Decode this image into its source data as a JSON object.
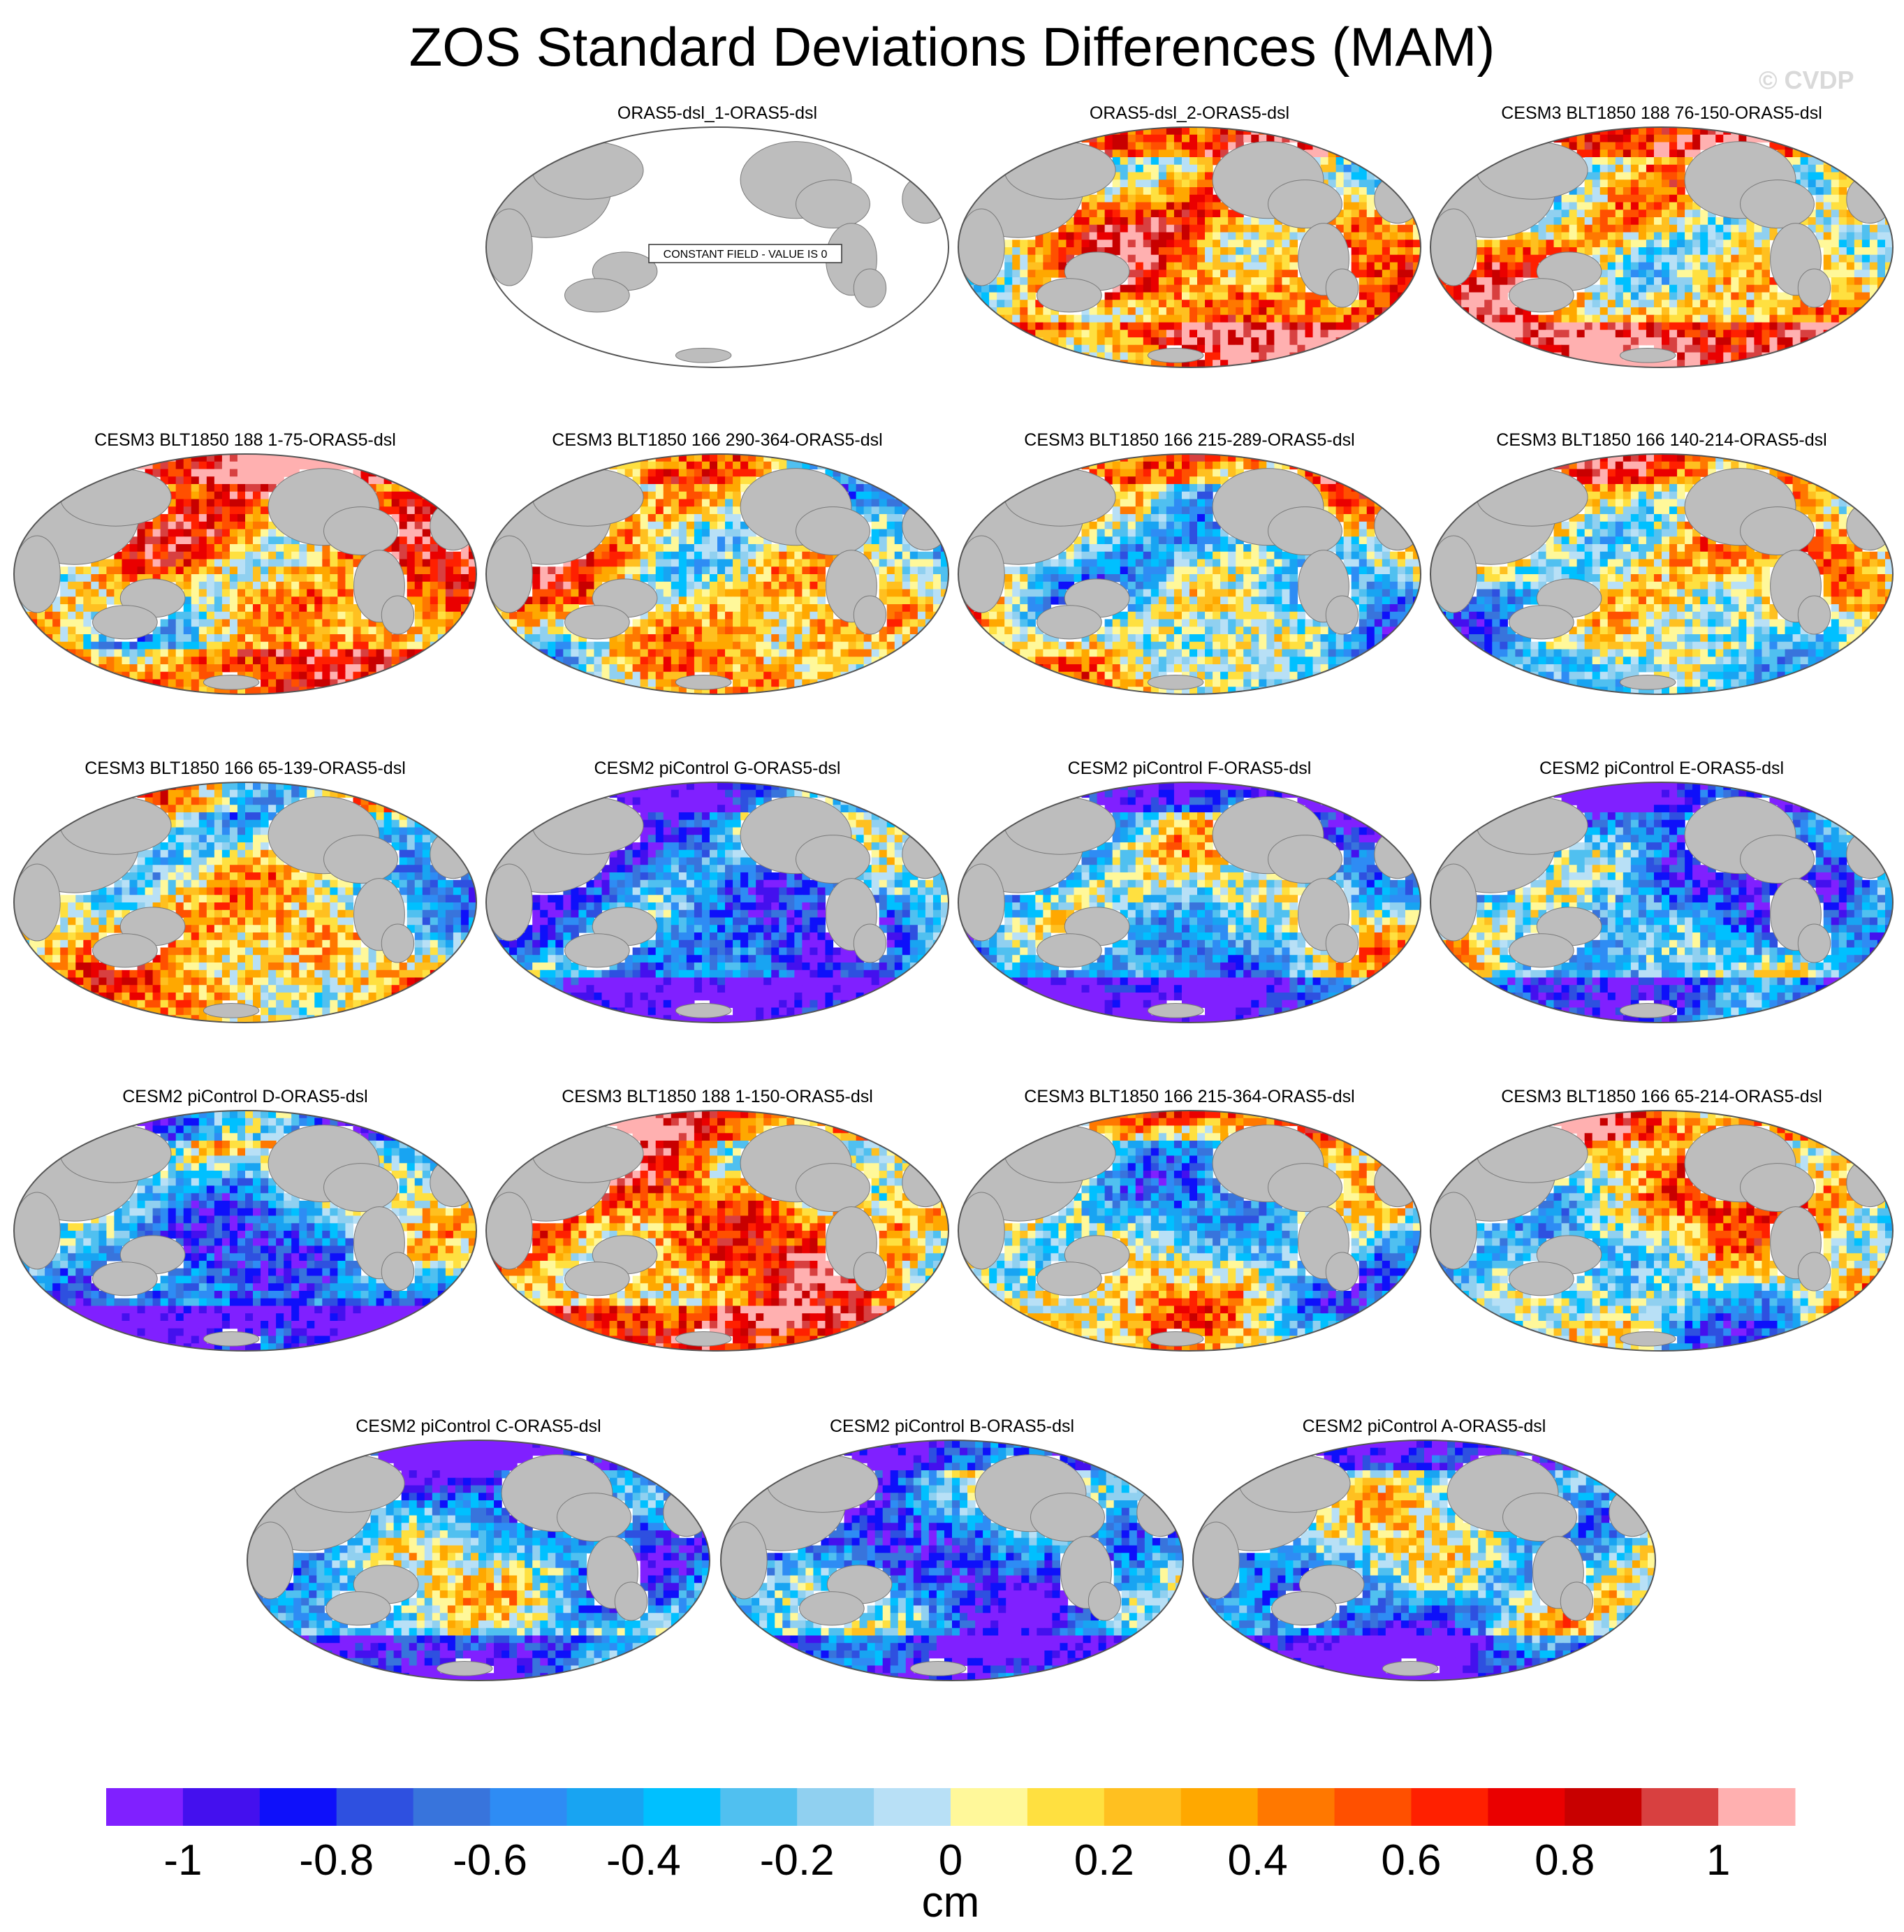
{
  "title": "ZOS Standard Deviations Differences (MAM)",
  "watermark": "© CVDP",
  "colors": {
    "land": "#bdbdbd",
    "ocean_constant": "#ffffff",
    "levels": [
      "#8020ff",
      "#4410ee",
      "#0e10fa",
      "#2e50e0",
      "#3874dc",
      "#2e8cf4",
      "#18a4f2",
      "#00c0ff",
      "#50c0f0",
      "#90d0f0",
      "#b8e0f6",
      "#fff89a",
      "#ffe040",
      "#ffc020",
      "#ffa800",
      "#ff7800",
      "#ff5000",
      "#ff2000",
      "#ea0000",
      "#c80000",
      "#d84040",
      "#ffb0b0"
    ]
  },
  "chart_data": {
    "type": "heatmap",
    "projection": "Robinson (Pacific-centered)",
    "colorbar": {
      "label": "cm",
      "min": -1.1,
      "max": 1.1,
      "boundaries": [
        -1.0,
        -0.9,
        -0.8,
        -0.7,
        -0.6,
        -0.5,
        -0.4,
        -0.3,
        -0.2,
        -0.1,
        0,
        0.1,
        0.2,
        0.3,
        0.4,
        0.5,
        0.6,
        0.7,
        0.8,
        0.9,
        1.0
      ],
      "tick_values": [
        -1,
        -0.8,
        -0.6,
        -0.4,
        -0.2,
        0,
        0.2,
        0.4,
        0.6,
        0.8,
        1
      ],
      "tick_labels": [
        "-1",
        "-0.8",
        "-0.6",
        "-0.4",
        "-0.2",
        "0",
        "0.2",
        "0.4",
        "0.6",
        "0.8",
        "1"
      ]
    },
    "panels": [
      {
        "title": "ORAS5-dsl_1-ORAS5-dsl",
        "constant": true,
        "note": "CONSTANT FIELD - VALUE IS 0"
      },
      {
        "title": "ORAS5-dsl_2-ORAS5-dsl",
        "dominant": "orange/yellow",
        "bias": 0.25
      },
      {
        "title": "CESM3 BLT1850 188 76-150-ORAS5-dsl",
        "dominant": "pink/red",
        "bias": 0.3
      },
      {
        "title": "CESM3 BLT1850 188 1-75-ORAS5-dsl",
        "dominant": "pink/red",
        "bias": 0.3
      },
      {
        "title": "CESM3 BLT1850 166 290-364-ORAS5-dsl",
        "dominant": "mixed",
        "bias": 0.0
      },
      {
        "title": "CESM3 BLT1850 166 215-289-ORAS5-dsl",
        "dominant": "mixed",
        "bias": 0.0
      },
      {
        "title": "CESM3 BLT1850 166 140-214-ORAS5-dsl",
        "dominant": "mixed",
        "bias": 0.0
      },
      {
        "title": "CESM3 BLT1850 166 65-139-ORAS5-dsl",
        "dominant": "mixed",
        "bias": 0.05
      },
      {
        "title": "CESM2 piControl G-ORAS5-dsl",
        "dominant": "purple/blue",
        "bias": -0.4
      },
      {
        "title": "CESM2 piControl F-ORAS5-dsl",
        "dominant": "purple/blue",
        "bias": -0.4
      },
      {
        "title": "CESM2 piControl E-ORAS5-dsl",
        "dominant": "purple/blue",
        "bias": -0.4
      },
      {
        "title": "CESM2 piControl D-ORAS5-dsl",
        "dominant": "purple/blue",
        "bias": -0.4
      },
      {
        "title": "CESM3 BLT1850 188 1-150-ORAS5-dsl",
        "dominant": "pink/red",
        "bias": 0.25
      },
      {
        "title": "CESM3 BLT1850 166 215-364-ORAS5-dsl",
        "dominant": "mixed",
        "bias": 0.0
      },
      {
        "title": "CESM3 BLT1850 166 65-214-ORAS5-dsl",
        "dominant": "mixed",
        "bias": 0.05
      },
      {
        "title": "CESM2 piControl C-ORAS5-dsl",
        "dominant": "purple/blue",
        "bias": -0.4
      },
      {
        "title": "CESM2 piControl B-ORAS5-dsl",
        "dominant": "purple/blue",
        "bias": -0.4
      },
      {
        "title": "CESM2 piControl A-ORAS5-dsl",
        "dominant": "purple/blue",
        "bias": -0.4
      }
    ]
  }
}
